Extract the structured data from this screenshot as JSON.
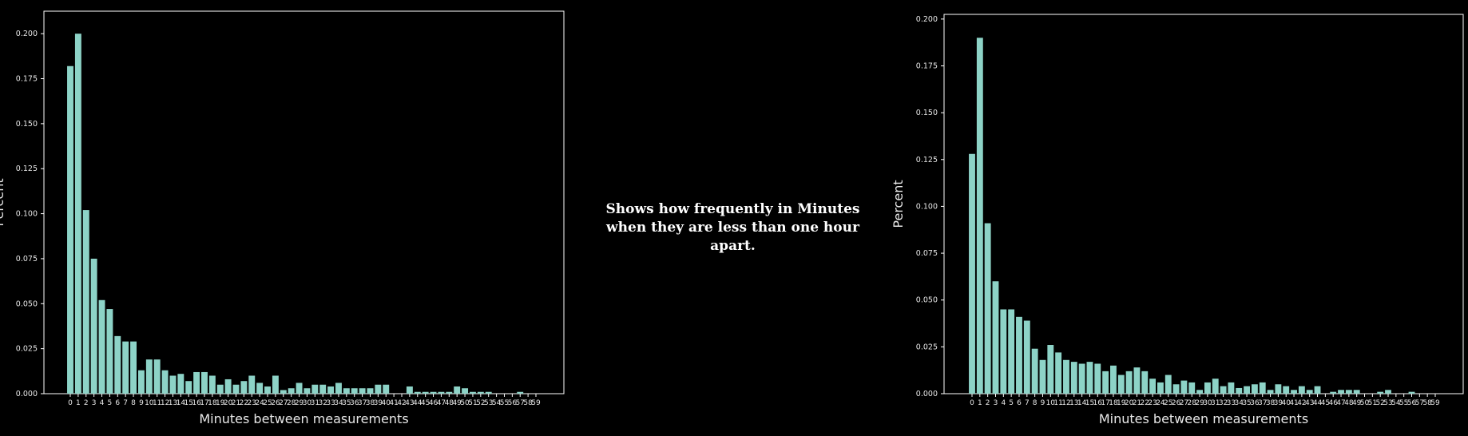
{
  "caption": "Shows how frequently in Minutes when they are less than one hour apart.",
  "colors": {
    "background": "#000000",
    "bar": "#8dd3c7",
    "axis": "#ffffff",
    "text": "#e8e8e8"
  },
  "chart_data": [
    {
      "type": "bar",
      "xlabel": "Minutes between measurements",
      "ylabel": "Percent",
      "ylim": [
        0,
        0.2125
      ],
      "yticks": [
        0.0,
        0.025,
        0.05,
        0.075,
        0.1,
        0.125,
        0.15,
        0.175,
        0.2
      ],
      "ytick_labels": [
        "0.000",
        "0.025",
        "0.050",
        "0.075",
        "0.100",
        "0.125",
        "0.150",
        "0.175",
        "0.200"
      ],
      "grid": false,
      "categories": [
        0,
        1,
        2,
        3,
        4,
        5,
        6,
        7,
        8,
        9,
        10,
        11,
        12,
        13,
        14,
        15,
        16,
        17,
        18,
        19,
        20,
        21,
        22,
        23,
        24,
        25,
        26,
        27,
        28,
        29,
        30,
        31,
        32,
        33,
        34,
        35,
        36,
        37,
        38,
        39,
        40,
        41,
        42,
        43,
        44,
        45,
        46,
        47,
        48,
        49,
        50,
        51,
        52,
        53,
        54,
        55,
        56,
        57,
        58,
        59
      ],
      "values": [
        0.182,
        0.2,
        0.102,
        0.075,
        0.052,
        0.047,
        0.032,
        0.029,
        0.029,
        0.013,
        0.019,
        0.019,
        0.013,
        0.01,
        0.011,
        0.007,
        0.012,
        0.012,
        0.01,
        0.005,
        0.008,
        0.005,
        0.007,
        0.01,
        0.006,
        0.004,
        0.01,
        0.002,
        0.003,
        0.006,
        0.003,
        0.005,
        0.005,
        0.004,
        0.006,
        0.003,
        0.003,
        0.003,
        0.003,
        0.005,
        0.005,
        0.0,
        0.0,
        0.004,
        0.001,
        0.001,
        0.001,
        0.001,
        0.001,
        0.004,
        0.003,
        0.001,
        0.001,
        0.001,
        0.0,
        0.0,
        0.0,
        0.001,
        0.0,
        0.0
      ]
    },
    {
      "type": "bar",
      "xlabel": "Minutes between measurements",
      "ylabel": "Percent",
      "ylim": [
        0,
        0.2025
      ],
      "yticks": [
        0.0,
        0.025,
        0.05,
        0.075,
        0.1,
        0.125,
        0.15,
        0.175,
        0.2
      ],
      "ytick_labels": [
        "0.000",
        "0.025",
        "0.050",
        "0.075",
        "0.100",
        "0.125",
        "0.150",
        "0.175",
        "0.200"
      ],
      "grid": false,
      "categories": [
        0,
        1,
        2,
        3,
        4,
        5,
        6,
        7,
        8,
        9,
        10,
        11,
        12,
        13,
        14,
        15,
        16,
        17,
        18,
        19,
        20,
        21,
        22,
        23,
        24,
        25,
        26,
        27,
        28,
        29,
        30,
        31,
        32,
        33,
        34,
        35,
        36,
        37,
        38,
        39,
        40,
        41,
        42,
        43,
        44,
        45,
        46,
        47,
        48,
        49,
        50,
        51,
        52,
        53,
        54,
        55,
        56,
        57,
        58,
        59
      ],
      "values": [
        0.128,
        0.19,
        0.091,
        0.06,
        0.045,
        0.045,
        0.041,
        0.039,
        0.024,
        0.018,
        0.026,
        0.022,
        0.018,
        0.017,
        0.016,
        0.017,
        0.016,
        0.012,
        0.015,
        0.01,
        0.012,
        0.014,
        0.012,
        0.008,
        0.006,
        0.01,
        0.005,
        0.007,
        0.006,
        0.002,
        0.006,
        0.008,
        0.004,
        0.006,
        0.003,
        0.004,
        0.005,
        0.006,
        0.002,
        0.005,
        0.004,
        0.002,
        0.004,
        0.002,
        0.004,
        0.0,
        0.001,
        0.002,
        0.002,
        0.002,
        0.0,
        0.0,
        0.001,
        0.002,
        0.0,
        0.0,
        0.001,
        0.0,
        0.0,
        0.0
      ]
    }
  ]
}
